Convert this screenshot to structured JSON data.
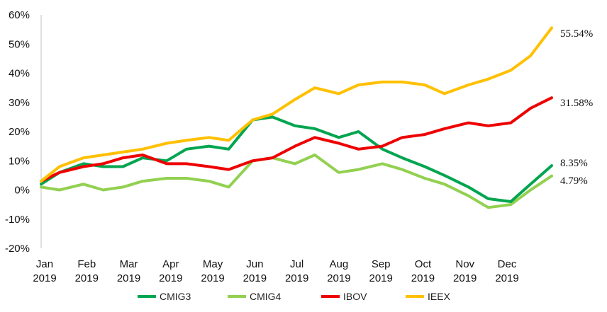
{
  "chart_data": {
    "type": "line",
    "title": "",
    "xlabel": "",
    "ylabel": "",
    "ylim": [
      -20,
      60
    ],
    "y_ticks": [
      "-20%",
      "-10%",
      "0%",
      "10%",
      "20%",
      "30%",
      "40%",
      "50%",
      "60%"
    ],
    "x_ticks": [
      {
        "month": "Jan",
        "year": "2019"
      },
      {
        "month": "Feb",
        "year": "2019"
      },
      {
        "month": "Mar",
        "year": "2019"
      },
      {
        "month": "Apr",
        "year": "2019"
      },
      {
        "month": "May",
        "year": "2019"
      },
      {
        "month": "Jun",
        "year": "2019"
      },
      {
        "month": "Jul",
        "year": "2019"
      },
      {
        "month": "Aug",
        "year": "2019"
      },
      {
        "month": "Sep",
        "year": "2019"
      },
      {
        "month": "Oct",
        "year": "2019"
      },
      {
        "month": "Nov",
        "year": "2019"
      },
      {
        "month": "Dec",
        "year": "2019"
      }
    ],
    "grid": false,
    "legend_position": "bottom",
    "x": [
      "2019-01-02",
      "2019-01-15",
      "2019-02-01",
      "2019-02-15",
      "2019-03-01",
      "2019-03-15",
      "2019-04-01",
      "2019-04-15",
      "2019-05-01",
      "2019-05-15",
      "2019-06-01",
      "2019-06-15",
      "2019-07-01",
      "2019-07-15",
      "2019-08-01",
      "2019-08-15",
      "2019-09-01",
      "2019-09-15",
      "2019-10-01",
      "2019-10-15",
      "2019-11-01",
      "2019-11-15",
      "2019-12-01",
      "2019-12-15",
      "2019-12-30"
    ],
    "series": [
      {
        "name": "CMIG3",
        "color": "#00a550",
        "values": [
          2,
          6,
          9,
          8,
          8,
          11,
          10,
          14,
          15,
          14,
          24,
          25,
          22,
          21,
          18,
          20,
          14,
          11,
          8,
          5,
          1,
          -3,
          -4,
          2,
          8.35
        ],
        "end_label": "8.35%"
      },
      {
        "name": "CMIG4",
        "color": "#92d050",
        "values": [
          1,
          0,
          2,
          0,
          1,
          3,
          4,
          4,
          3,
          1,
          10,
          11,
          9,
          12,
          6,
          7,
          9,
          7,
          4,
          2,
          -2,
          -6,
          -5,
          0,
          4.79
        ],
        "end_label": "4.79%"
      },
      {
        "name": "IBOV",
        "color": "#ee0000",
        "values": [
          3,
          6,
          8,
          9,
          11,
          12,
          9,
          9,
          8,
          7,
          10,
          11,
          15,
          18,
          16,
          14,
          15,
          18,
          19,
          21,
          23,
          22,
          23,
          28,
          31.58
        ],
        "end_label": "31.58%"
      },
      {
        "name": "IEEX",
        "color": "#ffc000",
        "values": [
          3,
          8,
          11,
          12,
          13,
          14,
          16,
          17,
          18,
          17,
          24,
          26,
          31,
          35,
          33,
          36,
          37,
          37,
          36,
          33,
          36,
          38,
          41,
          46,
          55.54
        ],
        "end_label": "55.54%"
      }
    ]
  }
}
